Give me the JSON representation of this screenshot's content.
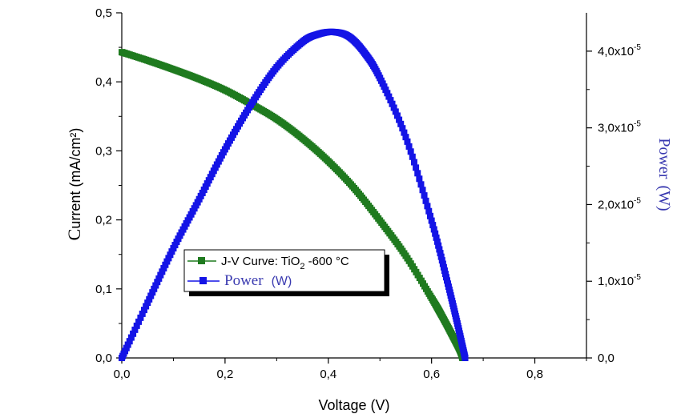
{
  "chart_data": {
    "type": "line",
    "xlabel": "Voltage  (V)",
    "ylabel_left": {
      "first": "C",
      "rest": "urrent (mA/cm²)"
    },
    "ylabel_right": {
      "main": "Power",
      "unit": "(W)"
    },
    "xlim": [
      0,
      0.9
    ],
    "ylim_left": [
      0,
      0.5
    ],
    "ylim_right": [
      0,
      4.5e-05
    ],
    "x_ticks": [
      {
        "v": 0.0,
        "label": "0,0"
      },
      {
        "v": 0.2,
        "label": "0,2"
      },
      {
        "v": 0.4,
        "label": "0,4"
      },
      {
        "v": 0.6,
        "label": "0,6"
      },
      {
        "v": 0.8,
        "label": "0,8"
      }
    ],
    "y_left_ticks": [
      {
        "v": 0.0,
        "label": "0,0"
      },
      {
        "v": 0.1,
        "label": "0,1"
      },
      {
        "v": 0.2,
        "label": "0,2"
      },
      {
        "v": 0.3,
        "label": "0,3"
      },
      {
        "v": 0.4,
        "label": "0,4"
      },
      {
        "v": 0.5,
        "label": "0,5"
      }
    ],
    "y_right_ticks": [
      {
        "v": 0,
        "label": "0,0"
      },
      {
        "v": 1e-05,
        "mant": "1,0x10",
        "exp": "-5"
      },
      {
        "v": 2e-05,
        "mant": "2,0x10",
        "exp": "-5"
      },
      {
        "v": 3e-05,
        "mant": "3,0x10",
        "exp": "-5"
      },
      {
        "v": 4e-05,
        "mant": "4,0x10",
        "exp": "-5"
      }
    ],
    "series": [
      {
        "name": "J-V Curve",
        "axis": "left",
        "color": "#1f7a1f",
        "x": [
          0.0,
          0.05,
          0.1,
          0.15,
          0.2,
          0.25,
          0.3,
          0.35,
          0.4,
          0.45,
          0.5,
          0.55,
          0.6,
          0.62,
          0.64,
          0.655,
          0.66
        ],
        "y": [
          0.443,
          0.431,
          0.418,
          0.404,
          0.388,
          0.368,
          0.346,
          0.318,
          0.285,
          0.246,
          0.199,
          0.148,
          0.087,
          0.061,
          0.033,
          0.011,
          0.0
        ]
      },
      {
        "name": "Power",
        "axis": "right",
        "color": "#1414e6",
        "x": [
          0.0,
          0.05,
          0.1,
          0.15,
          0.2,
          0.25,
          0.3,
          0.35,
          0.38,
          0.41,
          0.44,
          0.47,
          0.5,
          0.55,
          0.6,
          0.63,
          0.65,
          0.665
        ],
        "y": [
          0,
          7.2e-06,
          1.43e-05,
          2.07e-05,
          2.72e-05,
          3.3e-05,
          3.79e-05,
          4.12e-05,
          4.22e-05,
          4.25e-05,
          4.19e-05,
          3.98e-05,
          3.65e-05,
          2.88e-05,
          1.79e-05,
          1.01e-05,
          4.5e-06,
          0.0
        ]
      }
    ],
    "legend": {
      "position": "center-left",
      "jv_label": "J-V ",
      "jv_curve": "Curve",
      "jv_colon": ": ",
      "jv_sample": "TiO",
      "jv_sub": "2",
      "jv_temp": " -600 °C",
      "power_label": "Power",
      "power_unit": "(W)"
    }
  }
}
